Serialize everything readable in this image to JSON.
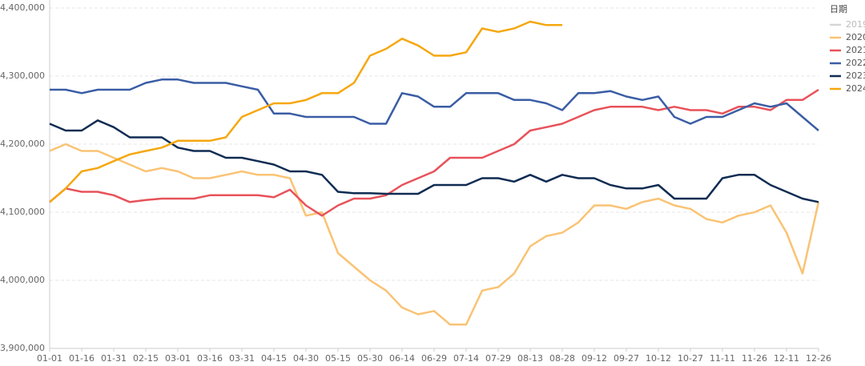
{
  "chart_data": {
    "type": "line",
    "legend_title": "日期",
    "legend": "right",
    "grid": true,
    "categories": [
      "01-01",
      null,
      "01-16",
      null,
      "01-31",
      null,
      "02-15",
      null,
      "03-01",
      null,
      "03-16",
      null,
      "03-31",
      null,
      "04-15",
      null,
      "04-30",
      null,
      "05-15",
      null,
      "05-30",
      null,
      "06-14",
      null,
      "06-29",
      null,
      "07-14",
      null,
      "07-29",
      null,
      "08-13",
      null,
      "08-28",
      null,
      "09-12",
      null,
      "09-27",
      null,
      "10-12",
      null,
      "10-27",
      null,
      "11-11",
      null,
      "11-26",
      null,
      "12-11",
      null,
      "12-26"
    ],
    "ylim": [
      3900000,
      4400000
    ],
    "yticks": [
      {
        "value": 3900000,
        "label": "3,900,000"
      },
      {
        "value": 4000000,
        "label": "4,000,000"
      },
      {
        "value": 4100000,
        "label": "4,100,000"
      },
      {
        "value": 4200000,
        "label": "4,200,000"
      },
      {
        "value": 4300000,
        "label": "4,300,000"
      },
      {
        "value": 4400000,
        "label": "4,400,000"
      }
    ],
    "series": [
      {
        "name": "2019",
        "color": "#d6d6d6",
        "values": [
          null,
          null,
          null,
          null,
          null,
          null,
          null,
          null,
          null,
          null,
          null,
          null,
          null,
          null,
          null,
          null,
          null,
          null,
          null,
          null,
          null,
          null,
          null,
          null,
          null,
          null,
          null,
          null,
          null,
          null,
          null,
          null,
          null,
          null,
          null,
          null,
          null,
          null,
          null,
          null,
          null,
          null,
          null,
          null,
          null,
          null,
          null,
          null,
          null
        ]
      },
      {
        "name": "2020",
        "color": "#f9c374",
        "values": [
          4190000,
          4200000,
          4190000,
          4190000,
          4180000,
          4170000,
          4160000,
          4165000,
          4160000,
          4150000,
          4150000,
          4155000,
          4160000,
          4155000,
          4155000,
          4150000,
          4095000,
          4100000,
          4040000,
          4020000,
          4000000,
          3985000,
          3960000,
          3950000,
          3955000,
          3935000,
          3935000,
          3985000,
          3990000,
          4010000,
          4050000,
          4065000,
          4070000,
          4085000,
          4110000,
          4110000,
          4105000,
          4115000,
          4120000,
          4110000,
          4105000,
          4090000,
          4085000,
          4095000,
          4100000,
          4110000,
          4070000,
          4010000,
          4115000
        ]
      },
      {
        "name": "2021",
        "color": "#e8525a",
        "values": [
          4115000,
          4135000,
          4130000,
          4130000,
          4125000,
          4115000,
          4118000,
          4120000,
          4120000,
          4120000,
          4125000,
          4125000,
          4125000,
          4125000,
          4122000,
          4133000,
          4110000,
          4095000,
          4110000,
          4120000,
          4120000,
          4125000,
          4140000,
          4150000,
          4160000,
          4180000,
          4180000,
          4180000,
          4190000,
          4200000,
          4220000,
          4225000,
          4230000,
          4240000,
          4250000,
          4255000,
          4255000,
          4255000,
          4250000,
          4255000,
          4250000,
          4250000,
          4245000,
          4255000,
          4255000,
          4250000,
          4265000,
          4265000,
          4280000
        ]
      },
      {
        "name": "2022",
        "color": "#3a5da5",
        "values": [
          4280000,
          4280000,
          4275000,
          4280000,
          4280000,
          4280000,
          4290000,
          4295000,
          4295000,
          4290000,
          4290000,
          4290000,
          4285000,
          4280000,
          4245000,
          4245000,
          4240000,
          4240000,
          4240000,
          4240000,
          4230000,
          4230000,
          4275000,
          4270000,
          4255000,
          4255000,
          4275000,
          4275000,
          4275000,
          4265000,
          4265000,
          4260000,
          4250000,
          4275000,
          4275000,
          4278000,
          4270000,
          4265000,
          4270000,
          4240000,
          4230000,
          4240000,
          4240000,
          4250000,
          4260000,
          4255000,
          4260000,
          4240000,
          4220000
        ]
      },
      {
        "name": "2023",
        "color": "#0f2c52",
        "values": [
          4230000,
          4220000,
          4220000,
          4235000,
          4225000,
          4210000,
          4210000,
          4210000,
          4195000,
          4190000,
          4190000,
          4180000,
          4180000,
          4175000,
          4170000,
          4160000,
          4160000,
          4155000,
          4130000,
          4128000,
          4128000,
          4127000,
          4127000,
          4127000,
          4140000,
          4140000,
          4140000,
          4150000,
          4150000,
          4145000,
          4155000,
          4145000,
          4155000,
          4150000,
          4150000,
          4140000,
          4135000,
          4135000,
          4140000,
          4120000,
          4120000,
          4120000,
          4150000,
          4155000,
          4155000,
          4140000,
          4130000,
          4120000,
          4115000
        ]
      },
      {
        "name": "2024",
        "color": "#f5a70f",
        "values": [
          4115000,
          4135000,
          4160000,
          4165000,
          4175000,
          4185000,
          4190000,
          4195000,
          4205000,
          4205000,
          4205000,
          4210000,
          4240000,
          4250000,
          4260000,
          4260000,
          4265000,
          4275000,
          4275000,
          4290000,
          4330000,
          4340000,
          4355000,
          4345000,
          4330000,
          4330000,
          4335000,
          4370000,
          4365000,
          4370000,
          4380000,
          4375000,
          4375000,
          null,
          null,
          null,
          null,
          null,
          null,
          null,
          null,
          null,
          null,
          null,
          null,
          null,
          null,
          null,
          null
        ]
      }
    ]
  }
}
